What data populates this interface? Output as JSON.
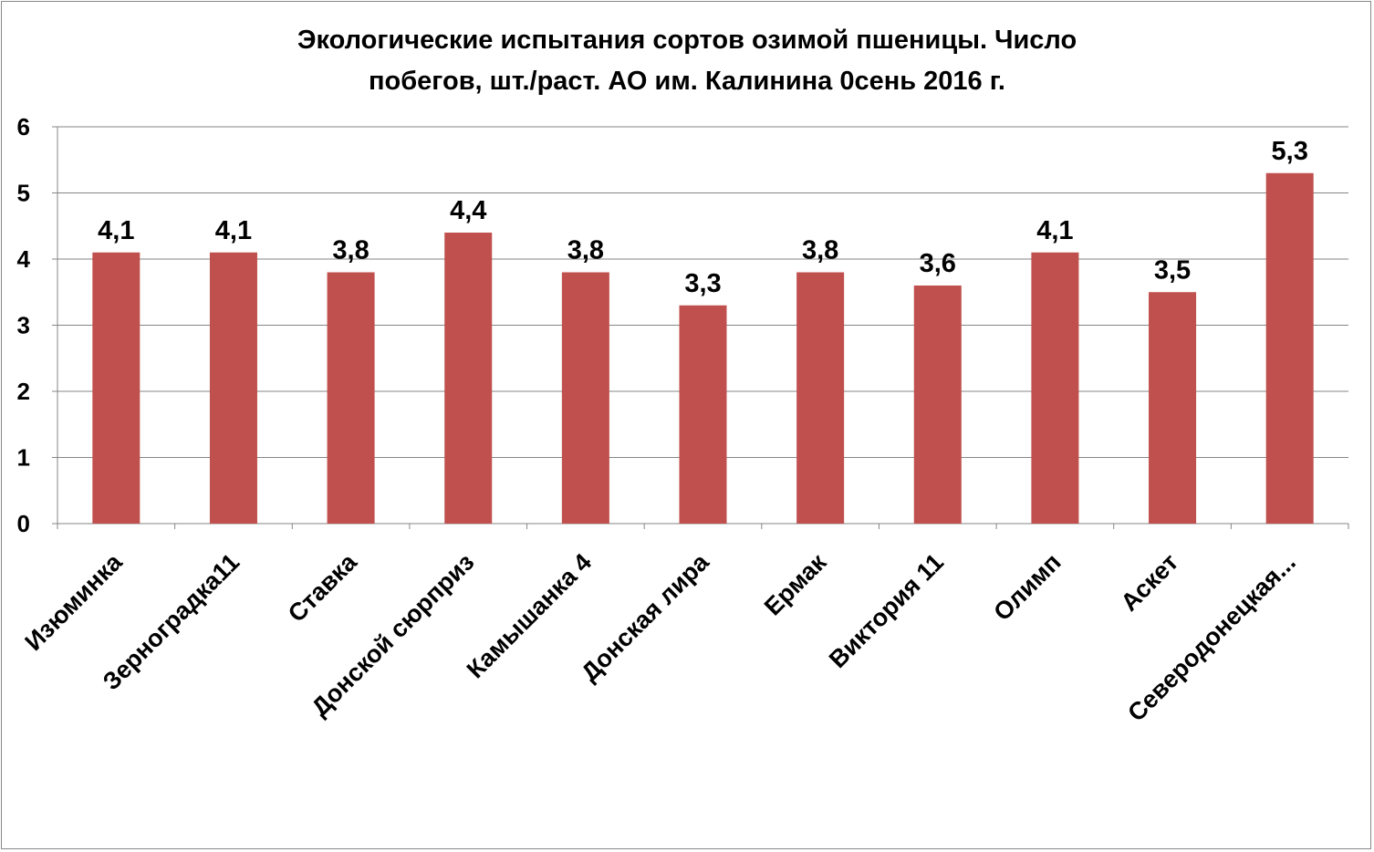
{
  "chart_data": {
    "type": "bar",
    "title_lines": [
      "Экологические испытания сортов озимой пшеницы. Число",
      "побегов, шт./раст. АО им. Калинина 0сень 2016 г."
    ],
    "categories": [
      "Изюминка",
      "Зерноградка11",
      "Ставка",
      "Донской сюрприз",
      "Камышанка 4",
      "Донская лира",
      "Ермак",
      "Виктория 11",
      "Олимп",
      "Аскет",
      "Северодонецкая..."
    ],
    "values": [
      4.1,
      4.1,
      3.8,
      4.4,
      3.8,
      3.3,
      3.8,
      3.6,
      4.1,
      3.5,
      5.3
    ],
    "data_labels": [
      "4,1",
      "4,1",
      "3,8",
      "4,4",
      "3,8",
      "3,3",
      "3,8",
      "3,6",
      "4,1",
      "3,5",
      "5,3"
    ],
    "ylim": [
      0,
      6
    ],
    "yticks": [
      0,
      1,
      2,
      3,
      4,
      5,
      6
    ],
    "grid": true,
    "legend": "none",
    "bar_color": "#C0504D",
    "grid_color": "#868686"
  }
}
